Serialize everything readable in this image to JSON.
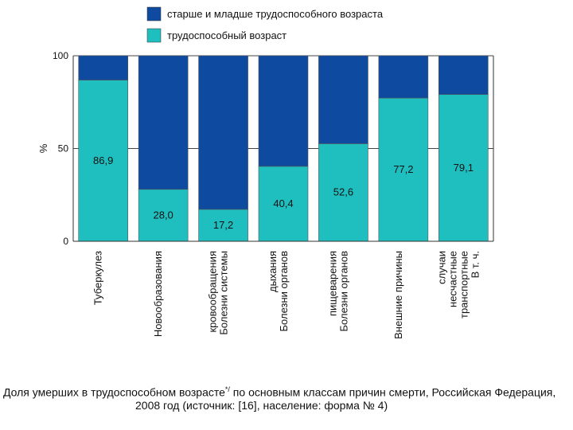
{
  "chart_data": {
    "type": "bar",
    "stacked": true,
    "ylabel": "%",
    "ylim": [
      0,
      100
    ],
    "yticks": [
      0,
      50,
      100
    ],
    "grid": "horizontal at 50 and 100",
    "categories": [
      [
        "Туберкулез"
      ],
      [
        "Новообразования"
      ],
      [
        "Болезни системы",
        "кровообращения"
      ],
      [
        "Болезни органов",
        "дыхания"
      ],
      [
        "Болезни органов",
        "пищеварения"
      ],
      [
        "Внешние причины"
      ],
      [
        "В т. ч.",
        "транспортные",
        "несчастные",
        "случаи"
      ]
    ],
    "series": [
      {
        "name": "трудоспособный возраст",
        "color": "#1fbfbf",
        "values": [
          86.9,
          28.0,
          17.2,
          40.4,
          52.6,
          77.2,
          79.1
        ],
        "labels": [
          "86,9",
          "28,0",
          "17,2",
          "40,4",
          "52,6",
          "77,2",
          "79,1"
        ]
      },
      {
        "name": "старше и младше трудоспособного возраста",
        "color": "#0d4aa0",
        "values": [
          13.1,
          72.0,
          82.8,
          59.6,
          47.4,
          22.8,
          20.9
        ]
      }
    ],
    "legend": "top"
  },
  "caption": {
    "line1_pre": "Доля умерших в трудоспособном возрасте",
    "line1_sup": "*/",
    "line1_post": " по основным классам причин смерти, Российская Федерация,",
    "line2": "2008 год (источник: [16], население: форма № 4)"
  }
}
